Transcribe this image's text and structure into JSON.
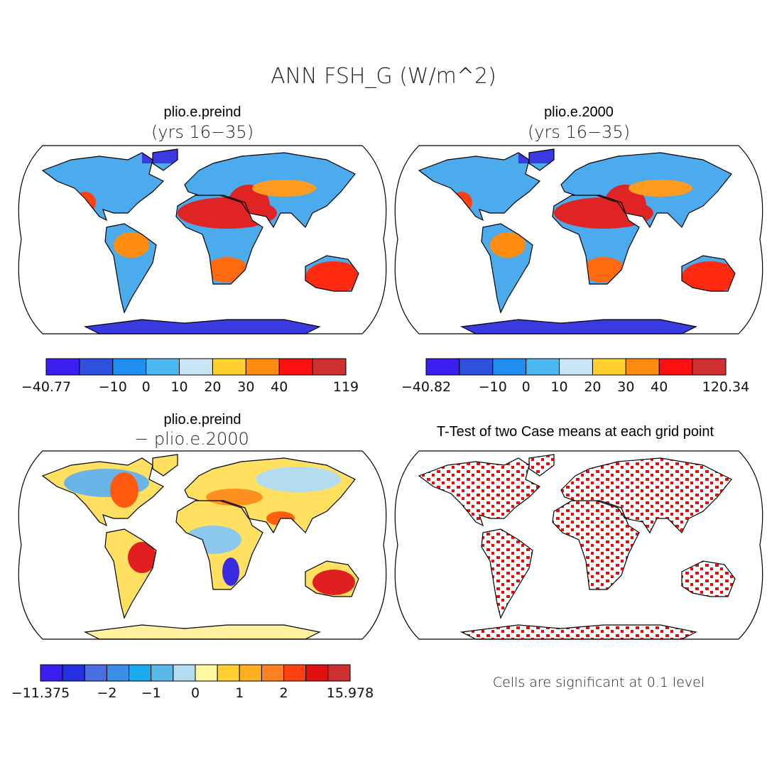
{
  "title": "ANN FSH_G (W/m^2)",
  "panels": [
    {
      "title": "plio.e.preind",
      "subtitle": "(yrs 16−35)",
      "colorbar": {
        "colors": [
          "#3a1ff0",
          "#3050e0",
          "#1e8ef0",
          "#4cb8f0",
          "#c8e6f4",
          "#ffd030",
          "#ff8c10",
          "#ff1010",
          "#d03030"
        ],
        "labels": [
          "−40.77",
          null,
          "−10",
          "0",
          "10",
          "20",
          "30",
          "40",
          null,
          "119"
        ]
      }
    },
    {
      "title": "plio.e.2000",
      "subtitle": "(yrs 16−35)",
      "colorbar": {
        "colors": [
          "#3a1ff0",
          "#3050e0",
          "#1e8ef0",
          "#4cb8f0",
          "#c8e6f4",
          "#ffd030",
          "#ff8c10",
          "#ff1010",
          "#d03030"
        ],
        "labels": [
          "−40.82",
          null,
          "−10",
          "0",
          "10",
          "20",
          "30",
          "40",
          null,
          "120.34"
        ]
      }
    },
    {
      "title": "plio.e.preind",
      "subtitle": "− plio.e.2000",
      "colorbar": {
        "colors": [
          "#3a1ff0",
          "#2431e0",
          "#4a6ee0",
          "#3a8ee8",
          "#1aaaf0",
          "#5ab8e8",
          "#b4dcf0",
          "#fff8a0",
          "#ffd030",
          "#ffb020",
          "#ff8020",
          "#ff4010",
          "#e01010",
          "#cc3030"
        ],
        "labels": [
          "−11.375",
          null,
          null,
          "−2",
          null,
          "−1",
          null,
          "0",
          null,
          "1",
          null,
          "2",
          null,
          null,
          "15.978"
        ]
      }
    },
    {
      "title": "T-Test of two Case means at each grid point",
      "note": "Cells are significant at 0.1 level"
    }
  ]
}
